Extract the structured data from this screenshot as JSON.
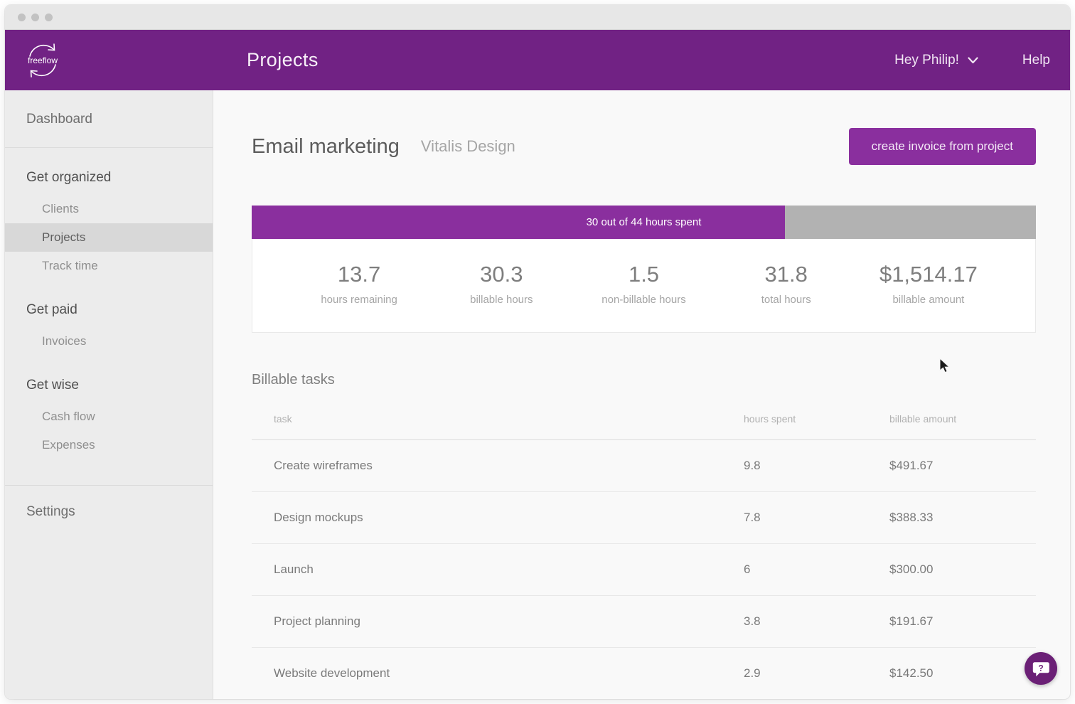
{
  "header": {
    "brand": "freeflow",
    "title": "Projects",
    "greeting": "Hey Philip!",
    "help": "Help"
  },
  "sidebar": {
    "dashboard": "Dashboard",
    "sections": [
      {
        "label": "Get organized",
        "items": [
          "Clients",
          "Projects",
          "Track time"
        ]
      },
      {
        "label": "Get paid",
        "items": [
          "Invoices"
        ]
      },
      {
        "label": "Get wise",
        "items": [
          "Cash flow",
          "Expenses"
        ]
      }
    ],
    "active_item": "Projects",
    "settings": "Settings"
  },
  "project": {
    "name": "Email marketing",
    "client": "Vitalis Design",
    "create_invoice_label": "create invoice from project",
    "progress": {
      "label": "30 out of 44 hours spent",
      "hours_spent": 30,
      "hours_total": 44,
      "percent": 68
    },
    "stats": [
      {
        "value": "13.7",
        "label": "hours remaining"
      },
      {
        "value": "30.3",
        "label": "billable hours"
      },
      {
        "value": "1.5",
        "label": "non-billable hours"
      },
      {
        "value": "31.8",
        "label": "total hours"
      },
      {
        "value": "$1,514.17",
        "label": "billable amount"
      }
    ]
  },
  "billable_tasks": {
    "title": "Billable tasks",
    "columns": [
      "task",
      "hours spent",
      "billable amount"
    ],
    "rows": [
      {
        "task": "Create wireframes",
        "hours": "9.8",
        "amount": "$491.67"
      },
      {
        "task": "Design mockups",
        "hours": "7.8",
        "amount": "$388.33"
      },
      {
        "task": "Launch",
        "hours": "6",
        "amount": "$300.00"
      },
      {
        "task": "Project planning",
        "hours": "3.8",
        "amount": "$191.67"
      },
      {
        "task": "Website development",
        "hours": "2.9",
        "amount": "$142.50"
      }
    ]
  },
  "icons": {
    "logo": "cycle-arrows-icon",
    "user_menu": "chevron-down-icon",
    "help_bubble": "question-chat-icon"
  },
  "colors": {
    "header_purple": "#712284",
    "accent_purple": "#8a2f9e",
    "bubble_purple": "#6b2076",
    "progress_track": "#b2b2b2",
    "sidebar_bg": "#ececec",
    "sidebar_active_bg": "#d8d8d8"
  }
}
